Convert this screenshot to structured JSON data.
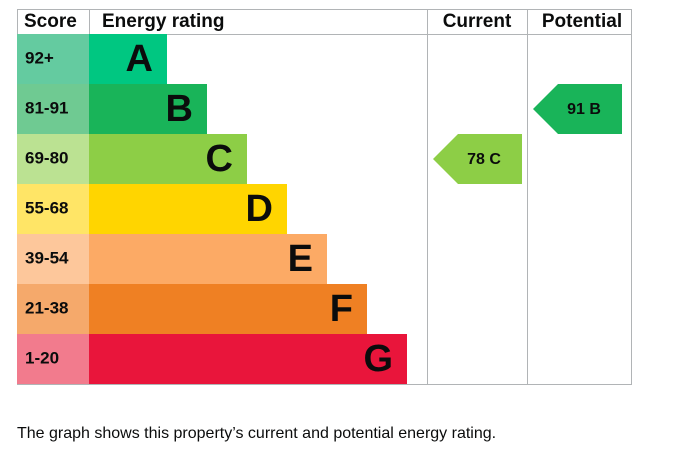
{
  "header": {
    "score": "Score",
    "rating": "Energy rating",
    "current": "Current",
    "potential": "Potential"
  },
  "bands": [
    {
      "score": "92+",
      "letter": "A",
      "color": "#00c781",
      "score_color": "#64cba0"
    },
    {
      "score": "81-91",
      "letter": "B",
      "color": "#19b459",
      "score_color": "#6fca92"
    },
    {
      "score": "69-80",
      "letter": "C",
      "color": "#8dce46",
      "score_color": "#bbe292"
    },
    {
      "score": "55-68",
      "letter": "D",
      "color": "#ffd500",
      "score_color": "#ffe566"
    },
    {
      "score": "39-54",
      "letter": "E",
      "color": "#fcaa65",
      "score_color": "#fdc79b"
    },
    {
      "score": "21-38",
      "letter": "F",
      "color": "#ef8023",
      "score_color": "#f5a96b"
    },
    {
      "score": "1-20",
      "letter": "G",
      "color": "#e9153b",
      "score_color": "#f27b8d"
    }
  ],
  "current": {
    "value": 78,
    "letter": "C"
  },
  "potential": {
    "value": 91,
    "letter": "B"
  },
  "caption": "The graph shows this property’s current and potential energy rating."
}
